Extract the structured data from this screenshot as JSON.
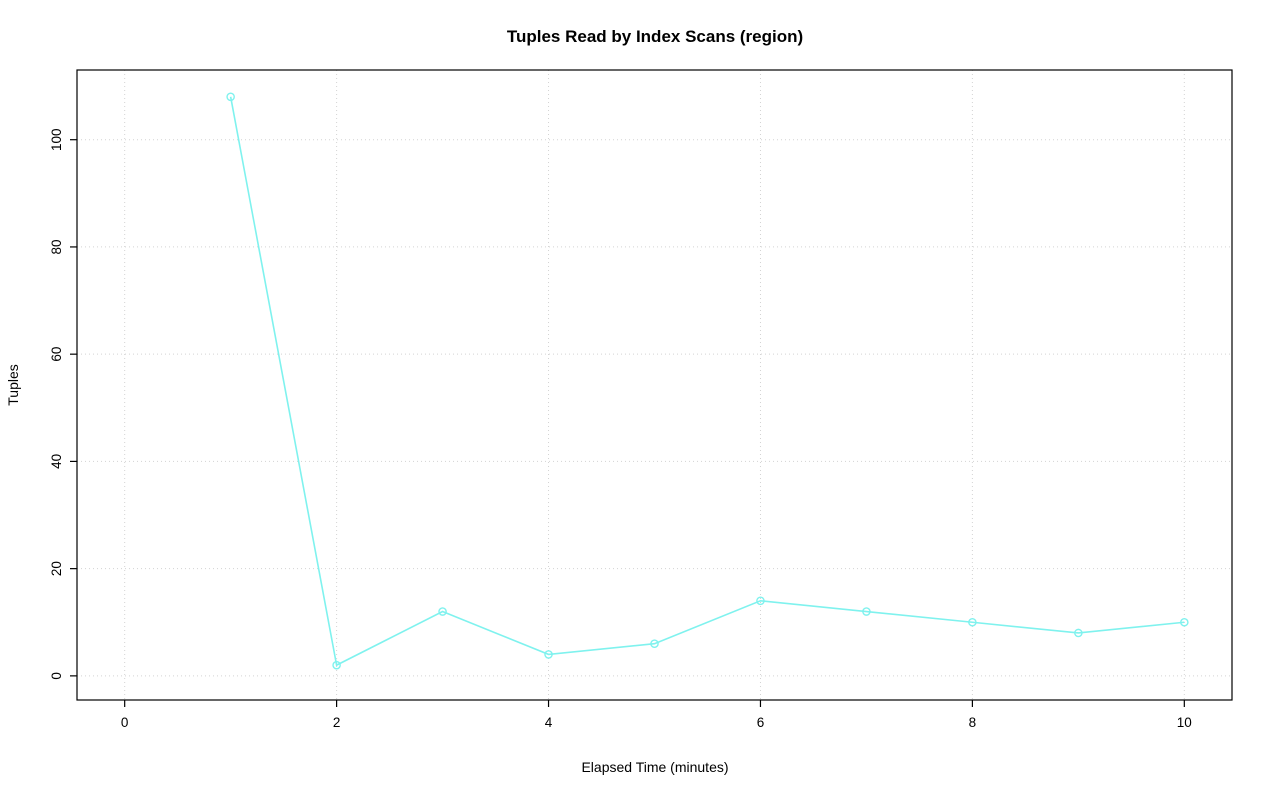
{
  "page": {
    "background": "#ffffff"
  },
  "chart_data": {
    "type": "line",
    "title": "Tuples Read by Index Scans (region)",
    "xlabel": "Elapsed Time (minutes)",
    "ylabel": "Tuples",
    "x": [
      1,
      2,
      3,
      4,
      5,
      6,
      7,
      8,
      9,
      10
    ],
    "y": [
      108,
      2,
      12,
      4,
      6,
      14,
      12,
      10,
      8,
      10
    ],
    "xticks": [
      0,
      2,
      4,
      6,
      8,
      10
    ],
    "yticks": [
      0,
      20,
      40,
      60,
      80,
      100
    ],
    "xlim": [
      -0.45,
      10.45
    ],
    "ylim": [
      -4.5,
      113
    ],
    "grid": true,
    "legend_position": "none",
    "marker": "open-circle",
    "colors": {
      "line": "#7FF2EE",
      "marker_stroke": "#7FF2EE",
      "grid": "#d3d3d3",
      "frame": "#000000",
      "background": "#ffffff"
    }
  }
}
